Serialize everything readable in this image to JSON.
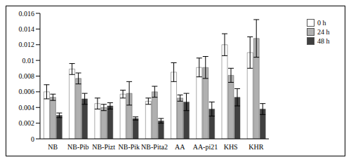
{
  "chart_data": {
    "type": "bar",
    "categories": [
      "NB",
      "NB-Pib",
      "NB-Pizt",
      "NB-Pik",
      "NB-Pita2",
      "AA",
      "AA-pi21",
      "KHS",
      "KHR"
    ],
    "series": [
      {
        "name": "0 h",
        "color": "#ffffff",
        "values": [
          0.006,
          0.0089,
          0.0045,
          0.0057,
          0.0048,
          0.0085,
          0.0091,
          0.012,
          0.011
        ],
        "errors": [
          0.0009,
          0.0007,
          0.0007,
          0.0005,
          0.0004,
          0.0012,
          0.0012,
          0.0014,
          0.002
        ]
      },
      {
        "name": "24 h",
        "color": "#b0b0b0",
        "values": [
          0.0053,
          0.0077,
          0.004,
          0.0058,
          0.006,
          0.0052,
          0.0091,
          0.0081,
          0.0128
        ],
        "errors": [
          0.0004,
          0.0007,
          0.0004,
          0.0015,
          0.0007,
          0.0004,
          0.0014,
          0.0009,
          0.0024
        ]
      },
      {
        "name": "48 h",
        "color": "#404040",
        "values": [
          0.003,
          0.0051,
          0.0042,
          0.0026,
          0.0023,
          0.0047,
          0.0038,
          0.0053,
          0.0038
        ],
        "errors": [
          0.0003,
          0.0007,
          0.0004,
          0.0002,
          0.0003,
          0.0011,
          0.0009,
          0.0011,
          0.0007
        ]
      }
    ],
    "ylim": [
      0,
      0.016
    ],
    "yticks": [
      0,
      0.002,
      0.004,
      0.006,
      0.008,
      0.01,
      0.012,
      0.014,
      0.016
    ],
    "grid": false,
    "legend": "upper right"
  }
}
